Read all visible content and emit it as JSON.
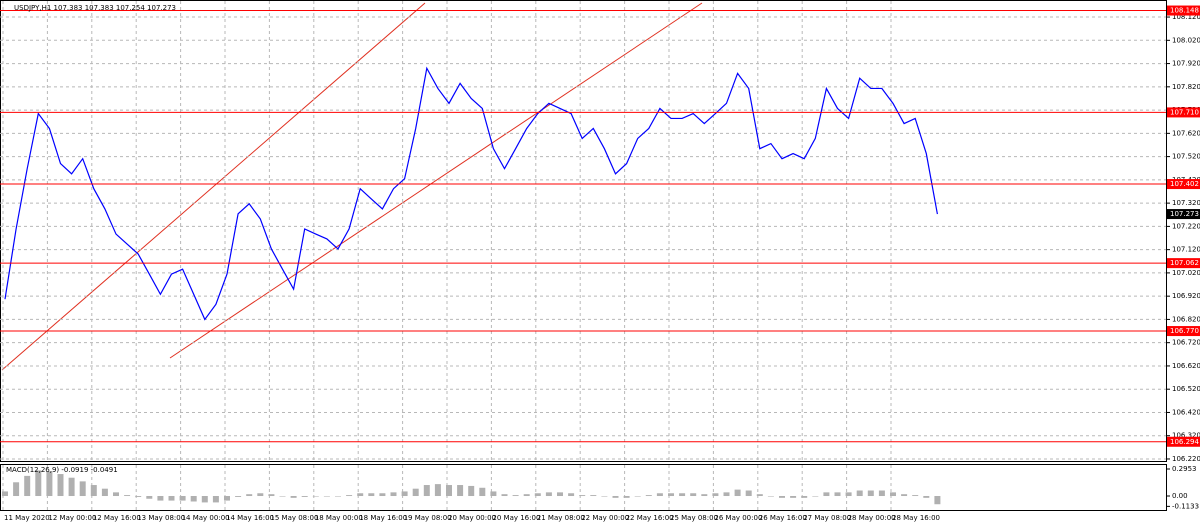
{
  "chart_data": [
    {
      "type": "line",
      "title": "USDJPY,H1  107.383 107.383 107.254 107.273",
      "categories": [
        "11 May 2020",
        null,
        null,
        null,
        "12 May 00:00",
        null,
        null,
        null,
        "12 May 16:00",
        null,
        null,
        null,
        "13 May 08:00",
        null,
        null,
        null,
        "14 May 00:00",
        null,
        null,
        null,
        "14 May 16:00",
        null,
        null,
        null,
        "15 May 08:00",
        null,
        null,
        null,
        "18 May 00:00",
        null,
        null,
        null,
        "18 May 16:00",
        null,
        null,
        null,
        "19 May 08:00",
        null,
        null,
        null,
        "20 May 00:00",
        null,
        null,
        null,
        "20 May 16:00",
        null,
        null,
        null,
        "21 May 08:00",
        null,
        null,
        null,
        "22 May 00:00",
        null,
        null,
        null,
        "22 May 16:00",
        null,
        null,
        null,
        "25 May 08:00",
        null,
        null,
        null,
        "26 May 00:00",
        null,
        null,
        null,
        "26 May 16:00",
        null,
        null,
        null,
        "27 May 08:00",
        null,
        null,
        null,
        "28 May 00:00",
        null,
        null,
        null,
        "28 May 16:00",
        null,
        null,
        null,
        null
      ],
      "series": [
        {
          "name": "USDJPY,H1",
          "color": "#0000ff",
          "values": [
            106.907,
            107.209,
            107.468,
            107.705,
            107.641,
            107.49,
            107.446,
            107.511,
            107.382,
            107.295,
            107.187,
            107.144,
            107.101,
            107.015,
            106.928,
            107.015,
            107.036,
            106.928,
            106.82,
            106.885,
            107.015,
            107.274,
            107.317,
            107.252,
            107.123,
            107.036,
            106.95,
            107.209,
            107.187,
            107.166,
            107.123,
            107.209,
            107.382,
            107.338,
            107.295,
            107.382,
            107.425,
            107.641,
            107.9,
            107.813,
            107.749,
            107.835,
            107.77,
            107.727,
            107.554,
            107.468,
            107.554,
            107.641,
            107.705,
            107.749,
            107.727,
            107.705,
            107.598,
            107.641,
            107.554,
            107.446,
            107.49,
            107.598,
            107.641,
            107.727,
            107.684,
            107.684,
            107.705,
            107.662,
            107.705,
            107.749,
            107.878,
            107.813,
            107.554,
            107.576,
            107.511,
            107.533,
            107.511,
            107.598,
            107.813,
            107.727,
            107.684,
            107.857,
            107.813,
            107.813,
            107.749,
            107.662,
            107.684,
            107.533,
            107.273
          ]
        }
      ],
      "ylim": [
        106.207,
        108.189
      ],
      "yticks": [
        {
          "value": 106.22,
          "label": "106.220"
        },
        {
          "value": 106.32,
          "label": "106.320"
        },
        {
          "value": 106.42,
          "label": "106.420"
        },
        {
          "value": 106.52,
          "label": "106.520"
        },
        {
          "value": 106.62,
          "label": "106.620"
        },
        {
          "value": 106.72,
          "label": "106.720"
        },
        {
          "value": 106.82,
          "label": "106.820"
        },
        {
          "value": 106.92,
          "label": "106.920"
        },
        {
          "value": 107.02,
          "label": "107.020"
        },
        {
          "value": 107.12,
          "label": "107.120"
        },
        {
          "value": 107.22,
          "label": "107.220"
        },
        {
          "value": 107.32,
          "label": "107.320"
        },
        {
          "value": 107.42,
          "label": "107.420"
        },
        {
          "value": 107.52,
          "label": "107.520"
        },
        {
          "value": 107.62,
          "label": "107.620"
        },
        {
          "value": 107.72,
          "label": "107.720"
        },
        {
          "value": 107.82,
          "label": "107.820"
        },
        {
          "value": 107.92,
          "label": "107.920"
        },
        {
          "value": 108.02,
          "label": "108.020"
        },
        {
          "value": 108.12,
          "label": "108.120"
        }
      ],
      "levels": [
        108.148,
        {
          "value": 107.71,
          "label": "107.710"
        },
        107.402,
        107.062,
        {
          "value": 106.77,
          "label": "106.770"
        },
        106.294
      ],
      "level_color": "#ff0000",
      "current_price": 107.273,
      "grid": true
    },
    {
      "type": "bar",
      "title": "MACD(12,26,9) -0.0919 -0.0491",
      "color": "#b0b0b0",
      "values": [
        0.05,
        0.15,
        0.22,
        0.28,
        0.27,
        0.24,
        0.2,
        0.16,
        0.12,
        0.08,
        0.04,
        0.01,
        -0.01,
        -0.03,
        -0.05,
        -0.05,
        -0.05,
        -0.06,
        -0.07,
        -0.07,
        -0.05,
        -0.01,
        0.02,
        0.03,
        0.02,
        0.0,
        -0.02,
        -0.01,
        0.0,
        0.0,
        0.0,
        0.01,
        0.03,
        0.03,
        0.03,
        0.04,
        0.05,
        0.08,
        0.12,
        0.13,
        0.12,
        0.12,
        0.11,
        0.09,
        0.05,
        0.02,
        0.01,
        0.02,
        0.03,
        0.04,
        0.04,
        0.03,
        0.01,
        0.01,
        0.0,
        -0.02,
        -0.02,
        0.0,
        0.01,
        0.03,
        0.03,
        0.03,
        0.03,
        0.02,
        0.03,
        0.04,
        0.07,
        0.06,
        0.02,
        0.0,
        -0.02,
        -0.02,
        -0.02,
        0.0,
        0.04,
        0.04,
        0.04,
        0.06,
        0.06,
        0.06,
        0.04,
        0.02,
        0.01,
        -0.02,
        -0.09
      ],
      "ylim": [
        -0.153,
        0.339
      ],
      "yticks": [
        0.2953,
        {
          "value": 0,
          "label": "0.00"
        },
        -0.1133
      ]
    }
  ]
}
